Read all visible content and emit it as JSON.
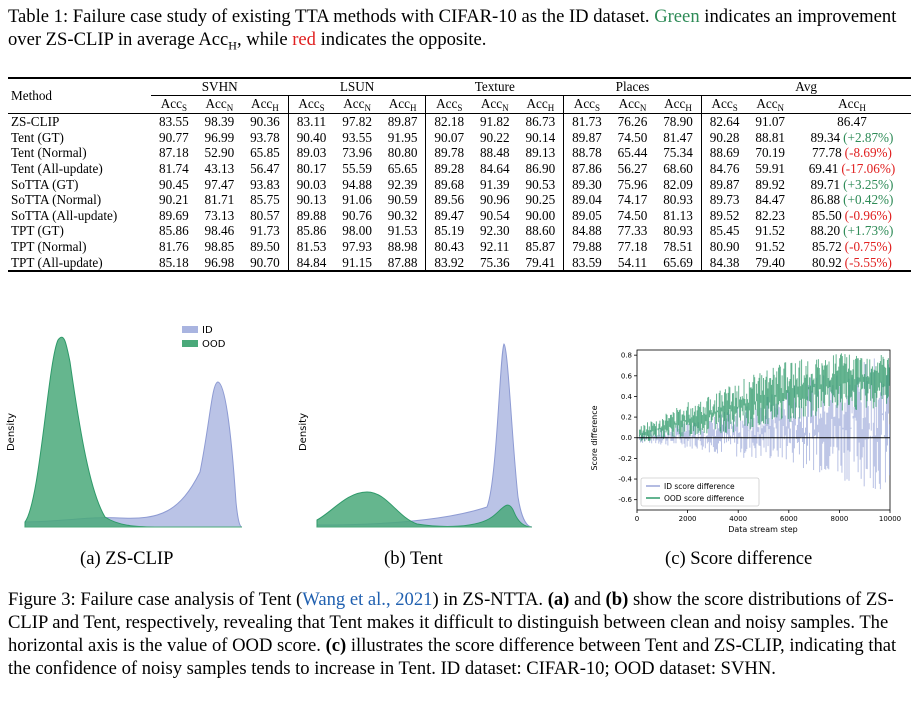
{
  "table": {
    "label": "Table 1:",
    "caption_before": "Failure case study of existing TTA methods with CIFAR-10 as the ID dataset.",
    "caption_green_word": "Green",
    "caption_middle": "indicates an improvement over ZS-CLIP in average Acc",
    "caption_sub": "H",
    "caption_mid2": ", while",
    "caption_red_word": "red",
    "caption_end": "indicates the opposite.",
    "method_header": "Method",
    "groups": [
      "SVHN",
      "LSUN",
      "Texture",
      "Places",
      "Avg"
    ],
    "metric_base": "Acc",
    "metric_subs": [
      "S",
      "N",
      "H"
    ],
    "rows": [
      {
        "method": "ZS-CLIP",
        "vals": [
          "83.55",
          "98.39",
          "90.36",
          "83.11",
          "97.82",
          "89.87",
          "82.18",
          "91.82",
          "86.73",
          "81.73",
          "76.26",
          "78.90",
          "82.64",
          "91.07"
        ],
        "avg_h": "86.47",
        "delta": "",
        "trend": ""
      },
      {
        "method": "Tent (GT)",
        "vals": [
          "90.77",
          "96.99",
          "93.78",
          "90.40",
          "93.55",
          "91.95",
          "90.07",
          "90.22",
          "90.14",
          "89.87",
          "74.50",
          "81.47",
          "90.28",
          "88.81"
        ],
        "avg_h": "89.34",
        "delta": "(+2.87%)",
        "trend": "up"
      },
      {
        "method": "Tent (Normal)",
        "vals": [
          "87.18",
          "52.90",
          "65.85",
          "89.03",
          "73.96",
          "80.80",
          "89.78",
          "88.48",
          "89.13",
          "88.78",
          "65.44",
          "75.34",
          "88.69",
          "70.19"
        ],
        "avg_h": "77.78",
        "delta": "(-8.69%)",
        "trend": "down"
      },
      {
        "method": "Tent (All-update)",
        "vals": [
          "81.74",
          "43.13",
          "56.47",
          "80.17",
          "55.59",
          "65.65",
          "89.28",
          "84.64",
          "86.90",
          "87.86",
          "56.27",
          "68.60",
          "84.76",
          "59.91"
        ],
        "avg_h": "69.41",
        "delta": "(-17.06%)",
        "trend": "down"
      },
      {
        "method": "SoTTA (GT)",
        "vals": [
          "90.45",
          "97.47",
          "93.83",
          "90.03",
          "94.88",
          "92.39",
          "89.68",
          "91.39",
          "90.53",
          "89.30",
          "75.96",
          "82.09",
          "89.87",
          "89.92"
        ],
        "avg_h": "89.71",
        "delta": "(+3.25%)",
        "trend": "up"
      },
      {
        "method": "SoTTA (Normal)",
        "vals": [
          "90.21",
          "81.71",
          "85.75",
          "90.13",
          "91.06",
          "90.59",
          "89.56",
          "90.96",
          "90.25",
          "89.04",
          "74.17",
          "80.93",
          "89.73",
          "84.47"
        ],
        "avg_h": "86.88",
        "delta": "(+0.42%)",
        "trend": "up"
      },
      {
        "method": "SoTTA (All-update)",
        "vals": [
          "89.69",
          "73.13",
          "80.57",
          "89.88",
          "90.76",
          "90.32",
          "89.47",
          "90.54",
          "90.00",
          "89.05",
          "74.50",
          "81.13",
          "89.52",
          "82.23"
        ],
        "avg_h": "85.50",
        "delta": "(-0.96%)",
        "trend": "down"
      },
      {
        "method": "TPT (GT)",
        "vals": [
          "85.86",
          "98.46",
          "91.73",
          "85.86",
          "98.00",
          "91.53",
          "85.19",
          "92.30",
          "88.60",
          "84.88",
          "77.33",
          "80.93",
          "85.45",
          "91.52"
        ],
        "avg_h": "88.20",
        "delta": "(+1.73%)",
        "trend": "up"
      },
      {
        "method": "TPT (Normal)",
        "vals": [
          "81.76",
          "98.85",
          "89.50",
          "81.53",
          "97.93",
          "88.98",
          "80.43",
          "92.11",
          "85.87",
          "79.88",
          "77.18",
          "78.51",
          "80.90",
          "91.52"
        ],
        "avg_h": "85.72",
        "delta": "(-0.75%)",
        "trend": "down"
      },
      {
        "method": "TPT (All-update)",
        "vals": [
          "85.18",
          "96.98",
          "90.70",
          "84.84",
          "91.15",
          "87.88",
          "83.92",
          "75.36",
          "79.41",
          "83.59",
          "54.11",
          "65.69",
          "84.38",
          "79.40"
        ],
        "avg_h": "80.92",
        "delta": "(-5.55%)",
        "trend": "down"
      }
    ]
  },
  "figures": {
    "density_ylabel": "Density",
    "legend_id": "ID",
    "legend_ood": "OOD",
    "colors": {
      "id": "#a9b4e0",
      "ood": "#4aa97a",
      "id_line": "#9aa6d8",
      "ood_line": "#2f9a6a"
    },
    "subcap_a": "(a) ZS-CLIP",
    "subcap_b": "(b) Tent",
    "subcap_c": "(c) Score difference",
    "chart_data": {
      "type": "line",
      "title": "",
      "xlabel": "Data stream step",
      "ylabel": "Score difference",
      "xlim": [
        0,
        10000
      ],
      "ylim": [
        -0.7,
        0.85
      ],
      "xticks": [
        "0",
        "2000",
        "4000",
        "6000",
        "8000",
        "10000"
      ],
      "yticks": [
        "0.8",
        "0.6",
        "0.4",
        "0.2",
        "0.0",
        "-0.2",
        "-0.4",
        "-0.6"
      ],
      "series": [
        {
          "name": "ID score difference",
          "description_x": [
            0,
            2000,
            4000,
            6000,
            8000,
            10000
          ],
          "upper": [
            0.05,
            0.15,
            0.3,
            0.5,
            0.7,
            0.8
          ],
          "lower": [
            -0.05,
            -0.1,
            -0.2,
            -0.25,
            -0.4,
            -0.55
          ]
        },
        {
          "name": "OOD score difference",
          "description_x": [
            0,
            2000,
            4000,
            6000,
            8000,
            10000
          ],
          "upper": [
            0.1,
            0.35,
            0.55,
            0.75,
            0.82,
            0.82
          ],
          "lower": [
            -0.05,
            0.0,
            0.05,
            0.15,
            0.25,
            0.3
          ]
        }
      ],
      "legend": [
        "ID score difference",
        "OOD score difference"
      ],
      "legend_position": "bottom-left"
    }
  },
  "figure_caption": {
    "label": "Figure 3:",
    "text1": "Failure case analysis of Tent (",
    "cite": "Wang et al., 2021",
    "text2": ") in ZS-NTTA.",
    "a": "(a)",
    "and": "and",
    "b": "(b)",
    "text3": "show the score distributions of ZS-CLIP and Tent, respectively, revealing that Tent makes it difficult to distinguish between clean and noisy samples. The horizontal axis is the value of OOD score.",
    "c": "(c)",
    "text4": "illustrates the score difference between Tent and ZS-CLIP, indicating that the confidence of noisy samples tends to increase in Tent. ID dataset: CIFAR-10; OOD dataset: SVHN."
  }
}
